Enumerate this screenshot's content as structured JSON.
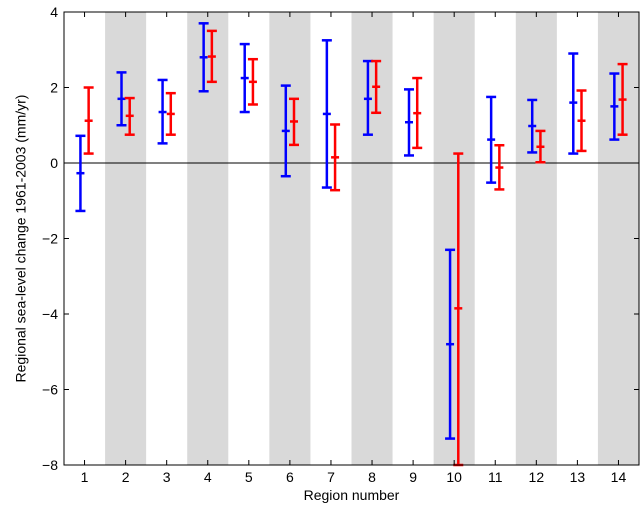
{
  "chart_data": {
    "type": "errorbar",
    "xlabel": "Region number",
    "ylabel": "Regional sea-level change 1961-2003 (mm/yr)",
    "xlim": [
      0.5,
      14.5
    ],
    "ylim": [
      -8,
      4
    ],
    "x_ticks": [
      1,
      2,
      3,
      4,
      5,
      6,
      7,
      8,
      9,
      10,
      11,
      12,
      13,
      14
    ],
    "y_ticks": [
      -8,
      -6,
      -4,
      -2,
      0,
      2,
      4
    ],
    "zero_line": true,
    "alternating_bands": {
      "shaded_regions": [
        2,
        4,
        6,
        8,
        10,
        12,
        14
      ],
      "color": "#d9d9d9"
    },
    "series": [
      {
        "color": "#0000ff",
        "offset": -0.1,
        "points": [
          {
            "x": 1,
            "y": -0.27,
            "lo": -1.27,
            "hi": 0.72
          },
          {
            "x": 2,
            "y": 1.7,
            "lo": 1.0,
            "hi": 2.4
          },
          {
            "x": 3,
            "y": 1.35,
            "lo": 0.52,
            "hi": 2.2
          },
          {
            "x": 4,
            "y": 2.8,
            "lo": 1.9,
            "hi": 3.7
          },
          {
            "x": 5,
            "y": 2.25,
            "lo": 1.35,
            "hi": 3.15
          },
          {
            "x": 6,
            "y": 0.85,
            "lo": -0.35,
            "hi": 2.05
          },
          {
            "x": 7,
            "y": 1.3,
            "lo": -0.65,
            "hi": 3.25
          },
          {
            "x": 8,
            "y": 1.7,
            "lo": 0.75,
            "hi": 2.7
          },
          {
            "x": 9,
            "y": 1.08,
            "lo": 0.2,
            "hi": 1.95
          },
          {
            "x": 10,
            "y": -4.8,
            "lo": -7.3,
            "hi": -2.3
          },
          {
            "x": 11,
            "y": 0.62,
            "lo": -0.52,
            "hi": 1.75
          },
          {
            "x": 12,
            "y": 0.98,
            "lo": 0.28,
            "hi": 1.67
          },
          {
            "x": 13,
            "y": 1.6,
            "lo": 0.25,
            "hi": 2.9
          },
          {
            "x": 14,
            "y": 1.5,
            "lo": 0.62,
            "hi": 2.37
          }
        ]
      },
      {
        "color": "#ff0000",
        "offset": 0.1,
        "points": [
          {
            "x": 1,
            "y": 1.12,
            "lo": 0.25,
            "hi": 2.0
          },
          {
            "x": 2,
            "y": 1.25,
            "lo": 0.75,
            "hi": 1.72
          },
          {
            "x": 3,
            "y": 1.3,
            "lo": 0.75,
            "hi": 1.85
          },
          {
            "x": 4,
            "y": 2.82,
            "lo": 2.15,
            "hi": 3.5
          },
          {
            "x": 5,
            "y": 2.15,
            "lo": 1.55,
            "hi": 2.75
          },
          {
            "x": 6,
            "y": 1.1,
            "lo": 0.48,
            "hi": 1.7
          },
          {
            "x": 7,
            "y": 0.15,
            "lo": -0.72,
            "hi": 1.02
          },
          {
            "x": 8,
            "y": 2.02,
            "lo": 1.33,
            "hi": 2.7
          },
          {
            "x": 9,
            "y": 1.32,
            "lo": 0.4,
            "hi": 2.25
          },
          {
            "x": 10,
            "y": -3.85,
            "lo": -8.0,
            "hi": 0.25
          },
          {
            "x": 11,
            "y": -0.12,
            "lo": -0.7,
            "hi": 0.47
          },
          {
            "x": 12,
            "y": 0.43,
            "lo": 0.02,
            "hi": 0.85
          },
          {
            "x": 13,
            "y": 1.12,
            "lo": 0.32,
            "hi": 1.92
          },
          {
            "x": 14,
            "y": 1.68,
            "lo": 0.75,
            "hi": 2.62
          }
        ]
      }
    ]
  }
}
